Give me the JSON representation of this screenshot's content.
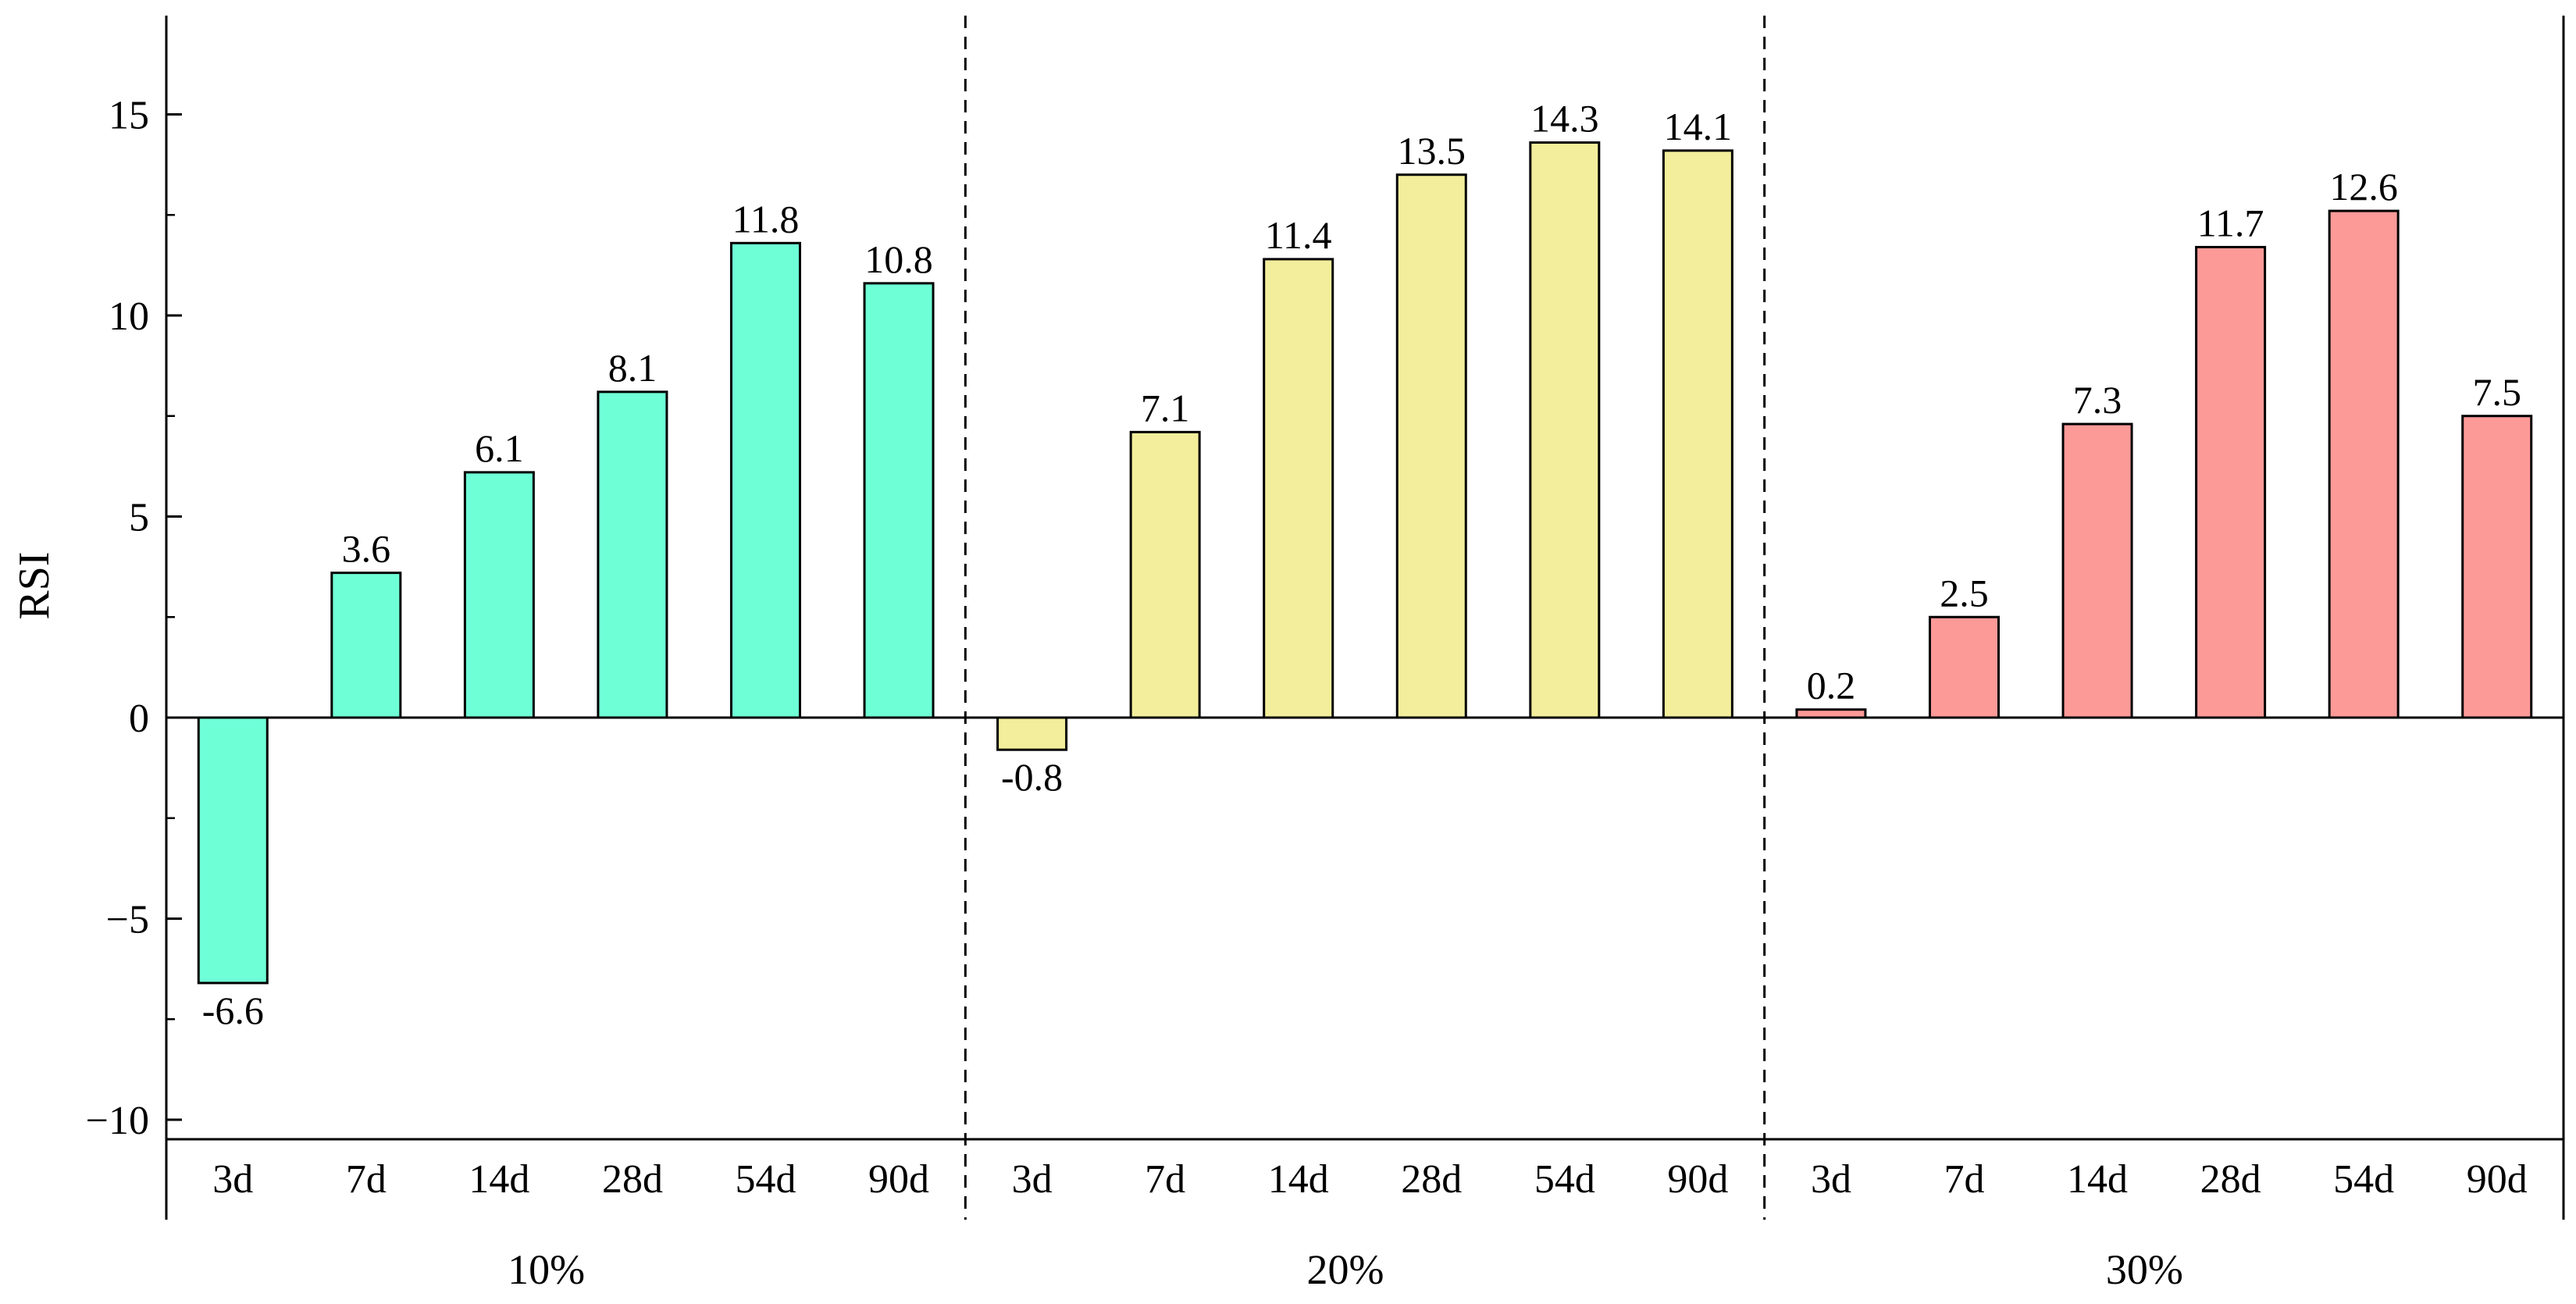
{
  "chart_data": {
    "type": "bar",
    "ylabel": "RSI",
    "ylim": [
      -10.5,
      17.4
    ],
    "yticks": [
      -10,
      -5,
      0,
      5,
      10,
      15
    ],
    "ytick_labels": [
      "−10",
      "−5",
      "0",
      "5",
      "10",
      "15"
    ],
    "grid": false,
    "groups": [
      {
        "name": "10%",
        "color": "#6fffd6",
        "categories": [
          "3d",
          "7d",
          "14d",
          "28d",
          "54d",
          "90d"
        ],
        "values": [
          -6.6,
          3.6,
          6.1,
          8.1,
          11.8,
          10.8
        ],
        "value_labels": [
          "-6.6",
          "3.6",
          "6.1",
          "8.1",
          "11.8",
          "10.8"
        ]
      },
      {
        "name": "20%",
        "color": "#f2ee9b",
        "categories": [
          "3d",
          "7d",
          "14d",
          "28d",
          "54d",
          "90d"
        ],
        "values": [
          -0.8,
          7.1,
          11.4,
          13.5,
          14.3,
          14.1
        ],
        "value_labels": [
          "-0.8",
          "7.1",
          "11.4",
          "13.5",
          "14.3",
          "14.1"
        ]
      },
      {
        "name": "30%",
        "color": "#fc9a98",
        "categories": [
          "3d",
          "7d",
          "14d",
          "28d",
          "54d",
          "90d"
        ],
        "values": [
          0.2,
          2.5,
          7.3,
          11.7,
          12.6,
          7.5
        ],
        "value_labels": [
          "0.2",
          "2.5",
          "7.3",
          "11.7",
          "12.6",
          "7.5"
        ]
      }
    ]
  }
}
